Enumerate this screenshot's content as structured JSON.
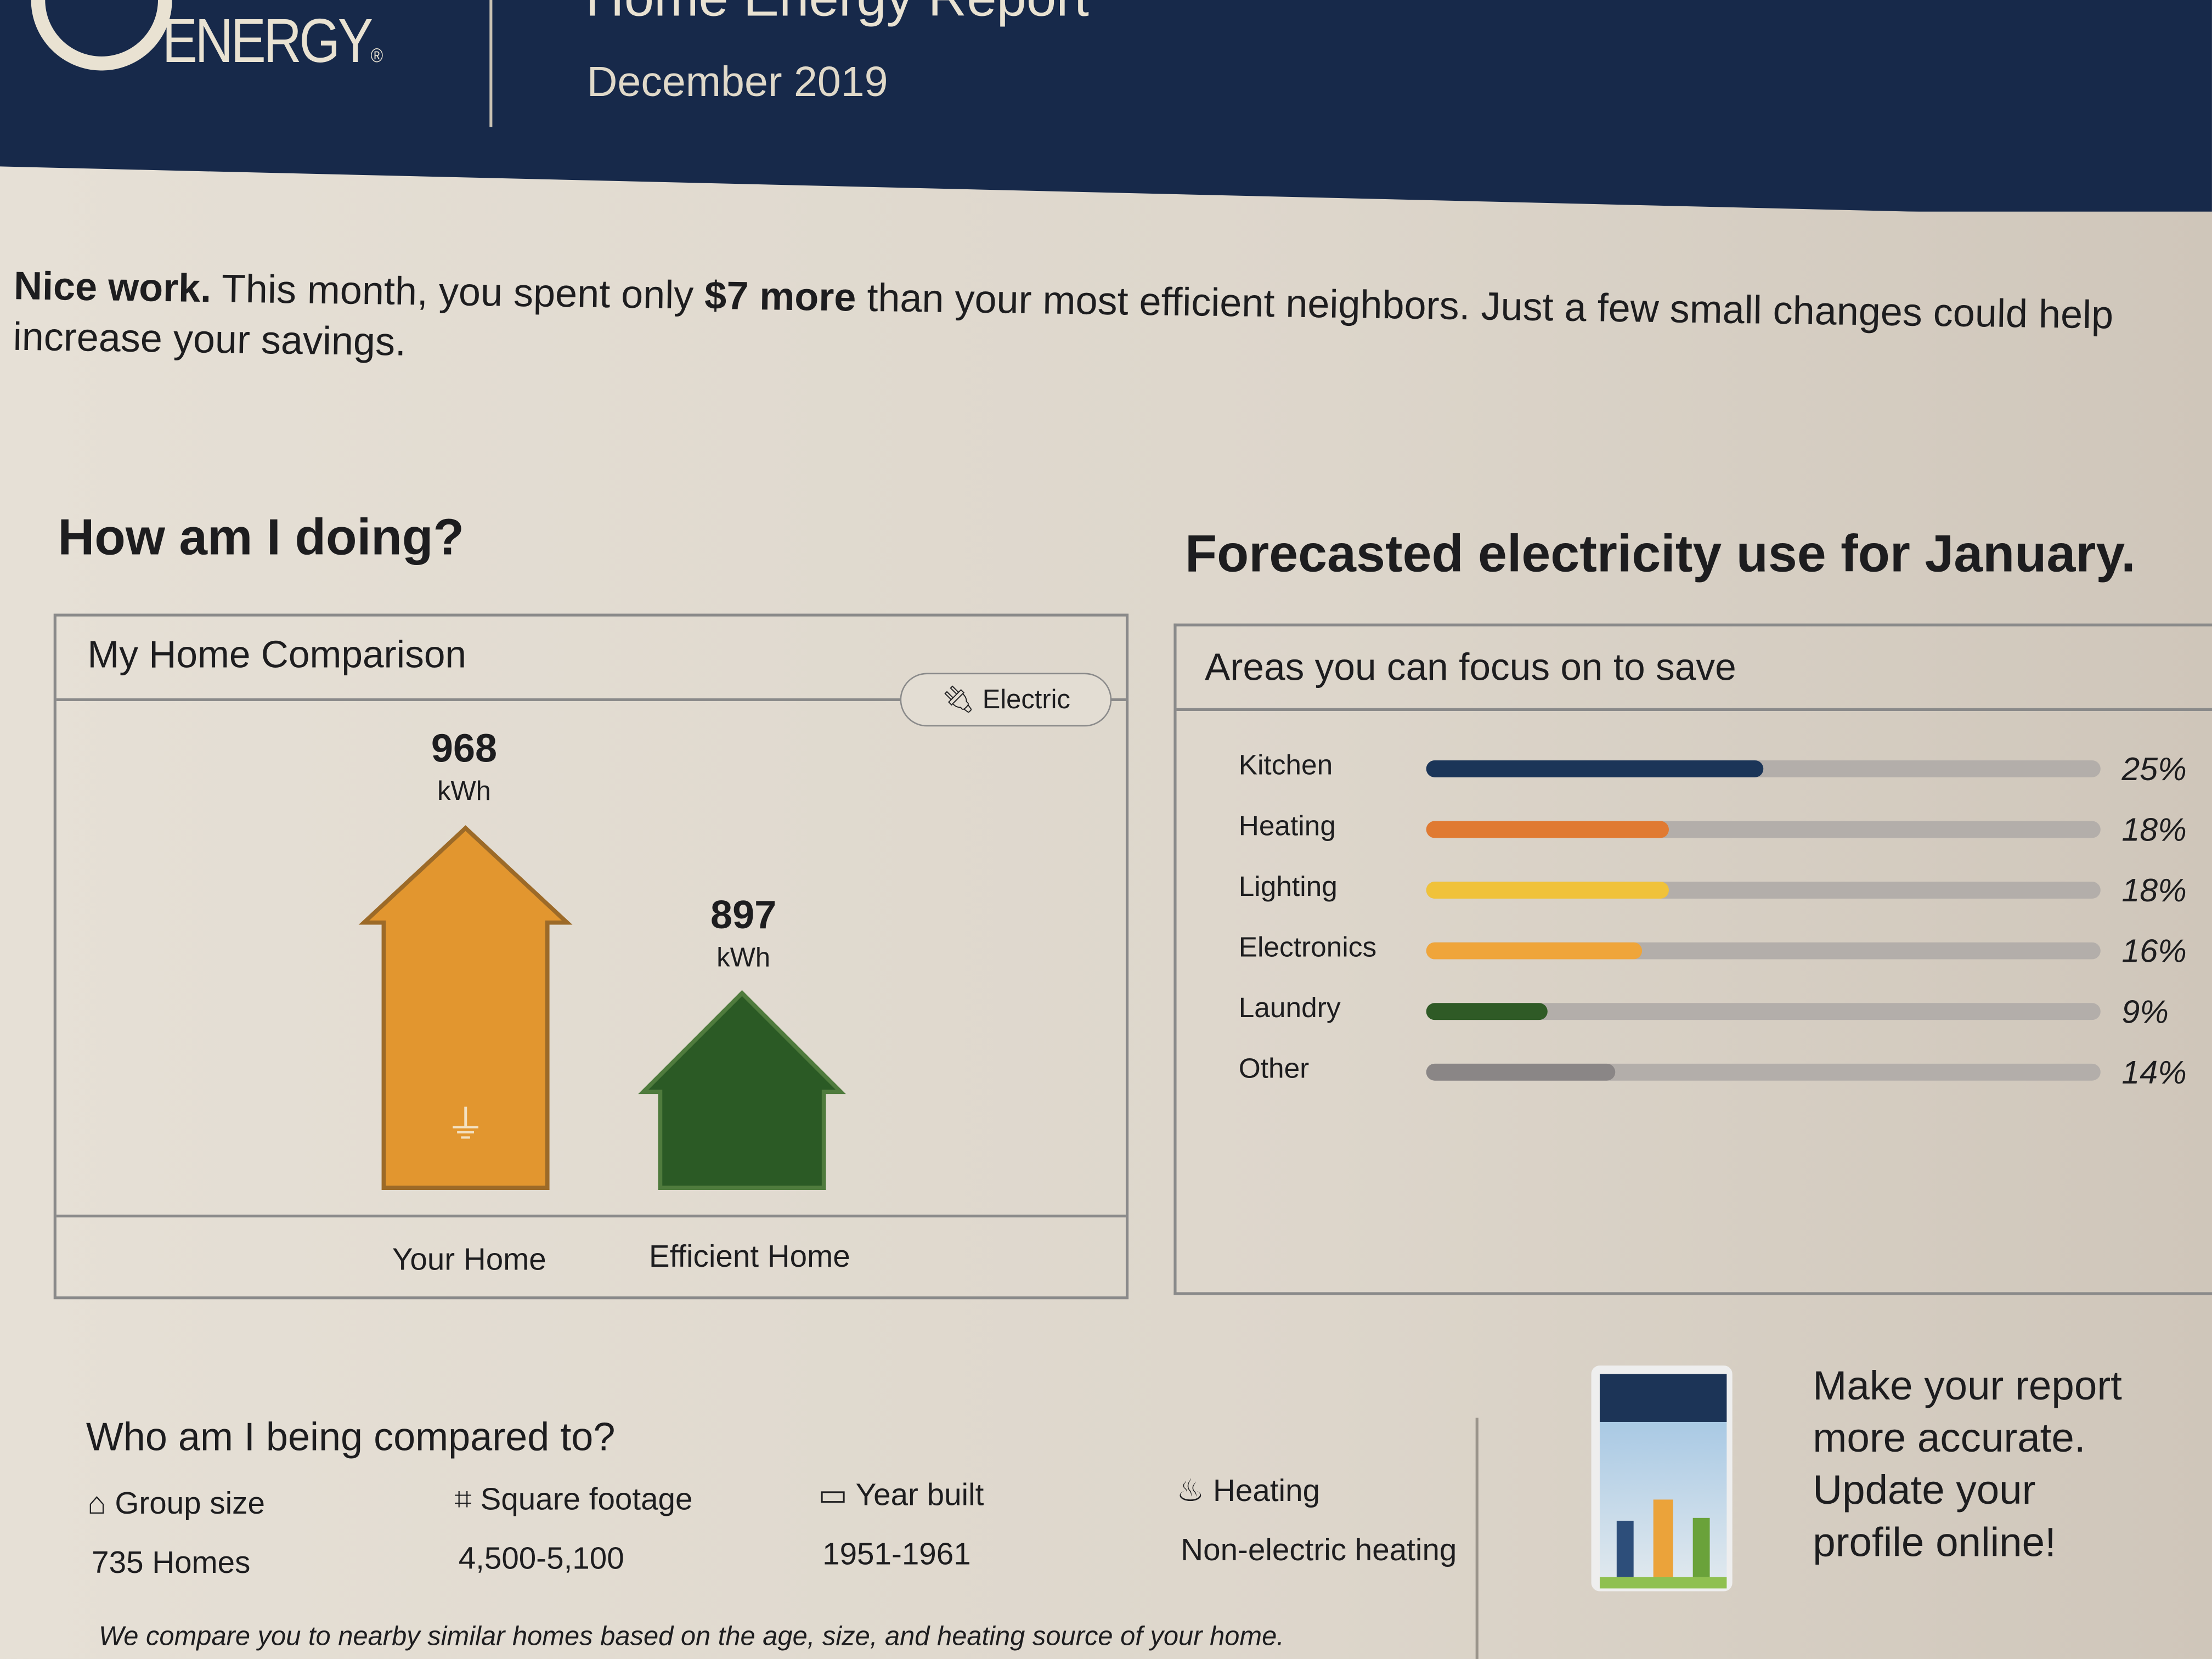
{
  "header": {
    "logo": "DUKE ENERGY",
    "title": "Home Energy Report",
    "date": "December 2019"
  },
  "intro": {
    "lead": "Nice work.",
    "text1": " This month, you spent only ",
    "highlight": "$7 more",
    "text2": " than your most efficient neighbors. Just a few small changes could help increase your savings."
  },
  "comparison": {
    "heading": "How am I doing?",
    "panel_title": "My Home Comparison",
    "filter_label": "Electric",
    "homes": [
      {
        "label": "Your Home",
        "value": "968",
        "unit": "kWh",
        "color": "#e2962f"
      },
      {
        "label": "Efficient Home",
        "value": "897",
        "unit": "kWh",
        "color": "#2b5a25"
      }
    ]
  },
  "forecast": {
    "heading": "Forecasted electricity use for January.",
    "panel_title": "Areas you can focus on to save",
    "items": [
      {
        "label": "Kitchen",
        "percent": 25,
        "text": "25%",
        "color": "#1b3558"
      },
      {
        "label": "Heating",
        "percent": 18,
        "text": "18%",
        "color": "#e07a32"
      },
      {
        "label": "Lighting",
        "percent": 18,
        "text": "18%",
        "color": "#f0c23a"
      },
      {
        "label": "Electronics",
        "percent": 16,
        "text": "16%",
        "color": "#efa53a"
      },
      {
        "label": "Laundry",
        "percent": 9,
        "text": "9%",
        "color": "#2f5a26"
      },
      {
        "label": "Other",
        "percent": 14,
        "text": "14%",
        "color": "#8a8686"
      }
    ]
  },
  "compared": {
    "heading": "Who am I being compared to?",
    "criteria": [
      {
        "icon": "house-icon",
        "label": "Group size",
        "value": "735 Homes"
      },
      {
        "icon": "square-footage-icon",
        "label": "Square footage",
        "value": "4,500-5,100"
      },
      {
        "icon": "year-built-icon",
        "label": "Year built",
        "value": "1951-1961"
      },
      {
        "icon": "heating-icon",
        "label": "Heating",
        "value": "Non-electric heating"
      }
    ],
    "note": "We compare you to nearby similar homes based on the age, size, and heating source of your home."
  },
  "promo": {
    "text": "Make your report more accurate. Update your profile online!"
  }
}
